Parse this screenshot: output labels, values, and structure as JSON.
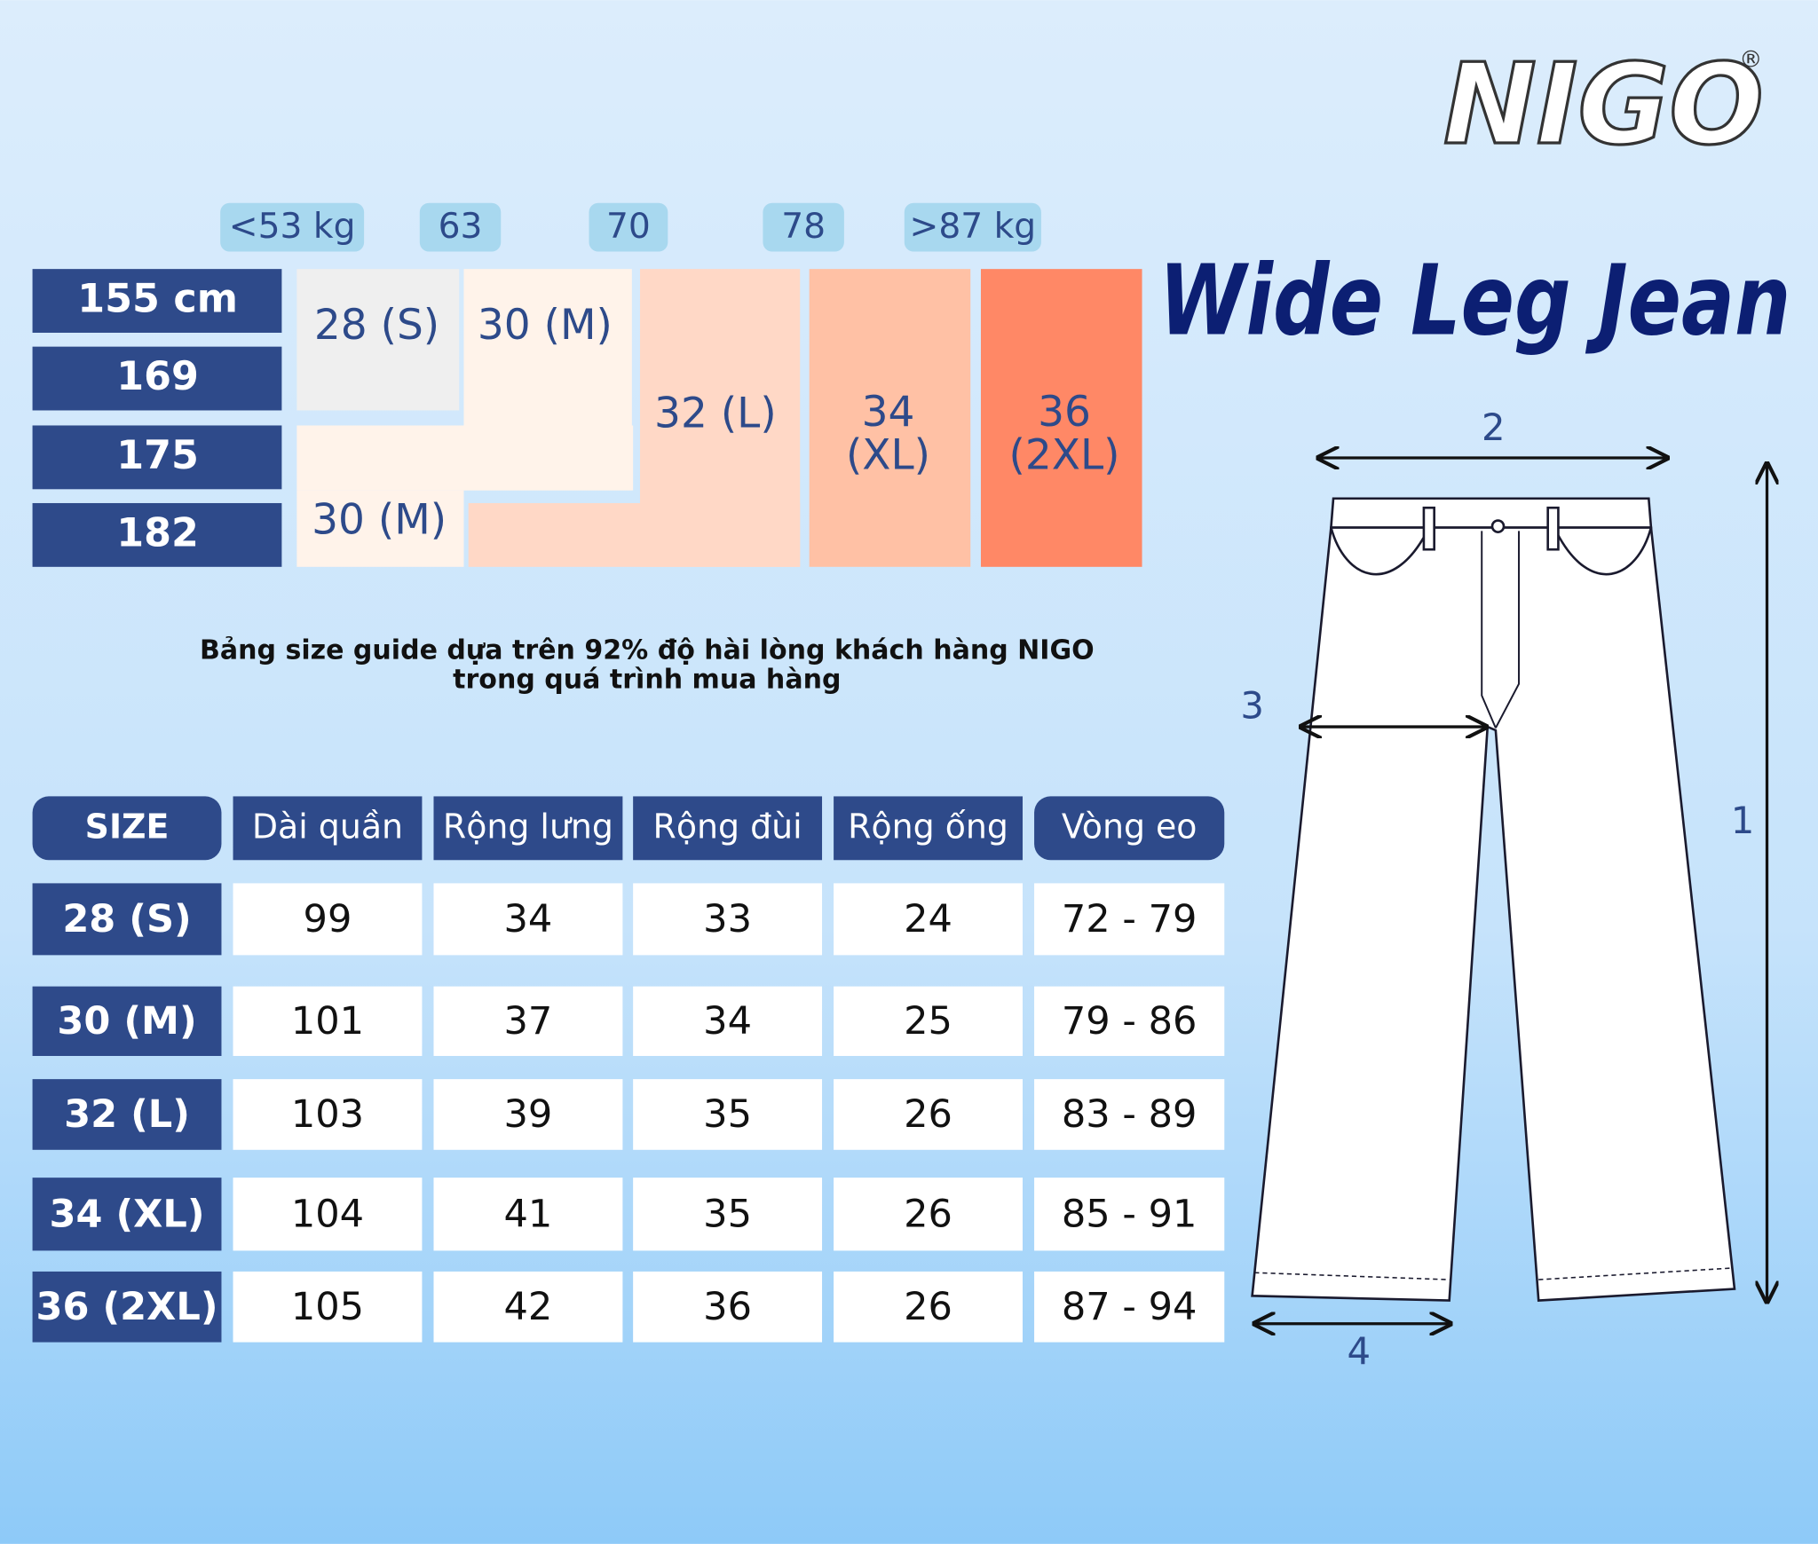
{
  "logo": {
    "name": "NIGO",
    "mark": "®"
  },
  "title": "Wide Leg Jean",
  "weight_labels": [
    "<53 kg",
    "63",
    "70",
    "78",
    ">87 kg"
  ],
  "height_labels": [
    "155 cm",
    "169",
    "175",
    "182"
  ],
  "size_grid": {
    "s": "28 (S)",
    "m_top": "30 (M)",
    "m_bottom": "30 (M)",
    "l": "32 (L)",
    "xl": [
      "34",
      "(XL)"
    ],
    "xxl": [
      "36",
      "(2XL)"
    ]
  },
  "note": [
    "Bảng size guide dựa trên 92% độ hài lòng khách hàng NIGO",
    "trong quá trình mua hàng"
  ],
  "table": {
    "header": [
      "SIZE",
      "Dài quần",
      "Rộng lưng",
      "Rộng đùi",
      "Rộng ống",
      "Vòng eo"
    ],
    "rows": [
      [
        "28 (S)",
        99,
        34,
        33,
        24,
        "72 - 79"
      ],
      [
        "30 (M)",
        101,
        37,
        34,
        25,
        "79 - 86"
      ],
      [
        "32 (L)",
        103,
        39,
        35,
        26,
        "83 - 89"
      ],
      [
        "34 (XL)",
        104,
        41,
        35,
        26,
        "85 - 91"
      ],
      [
        "36 (2XL)",
        105,
        42,
        36,
        26,
        "87 - 94"
      ]
    ]
  },
  "diagram_labels": [
    "1",
    "2",
    "3",
    "4"
  ]
}
